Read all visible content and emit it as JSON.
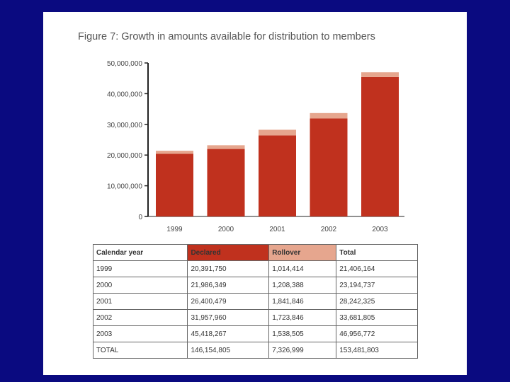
{
  "colors": {
    "background": "#0a0a80",
    "declared": "#c0311e",
    "rollover": "#e6a68e",
    "axis": "#222222"
  },
  "figure_title": "Figure 7: Growth in amounts available for distribution to members",
  "chart_data": {
    "type": "bar",
    "stacked": true,
    "title": "Figure 7: Growth in amounts available for distribution to members",
    "categories": [
      "1999",
      "2000",
      "2001",
      "2002",
      "2003"
    ],
    "series": [
      {
        "name": "Declared",
        "values": [
          20391750,
          21986349,
          26400479,
          31957960,
          45418267
        ]
      },
      {
        "name": "Rollover",
        "values": [
          1014414,
          1208388,
          1841846,
          1723846,
          1538505
        ]
      }
    ],
    "ylim": [
      0,
      50000000
    ],
    "yticks": [
      0,
      10000000,
      20000000,
      30000000,
      40000000,
      50000000
    ],
    "ytick_labels": [
      "0",
      "10,000,000",
      "20,000,000",
      "30,000,000",
      "40,000,000",
      "50,000,000"
    ],
    "xlabel": "",
    "ylabel": ""
  },
  "table": {
    "headers": [
      "Calendar year",
      "Declared",
      "Rollover",
      "Total"
    ],
    "rows": [
      [
        "1999",
        "20,391,750",
        "1,014,414",
        "21,406,164"
      ],
      [
        "2000",
        "21,986,349",
        "1,208,388",
        "23,194,737"
      ],
      [
        "2001",
        "26,400,479",
        "1,841,846",
        "28,242,325"
      ],
      [
        "2002",
        "31,957,960",
        "1,723,846",
        "33,681,805"
      ],
      [
        "2003",
        "45,418,267",
        "1,538,505",
        "46,956,772"
      ],
      [
        "TOTAL",
        "146,154,805",
        "7,326,999",
        "153,481,803"
      ]
    ]
  }
}
